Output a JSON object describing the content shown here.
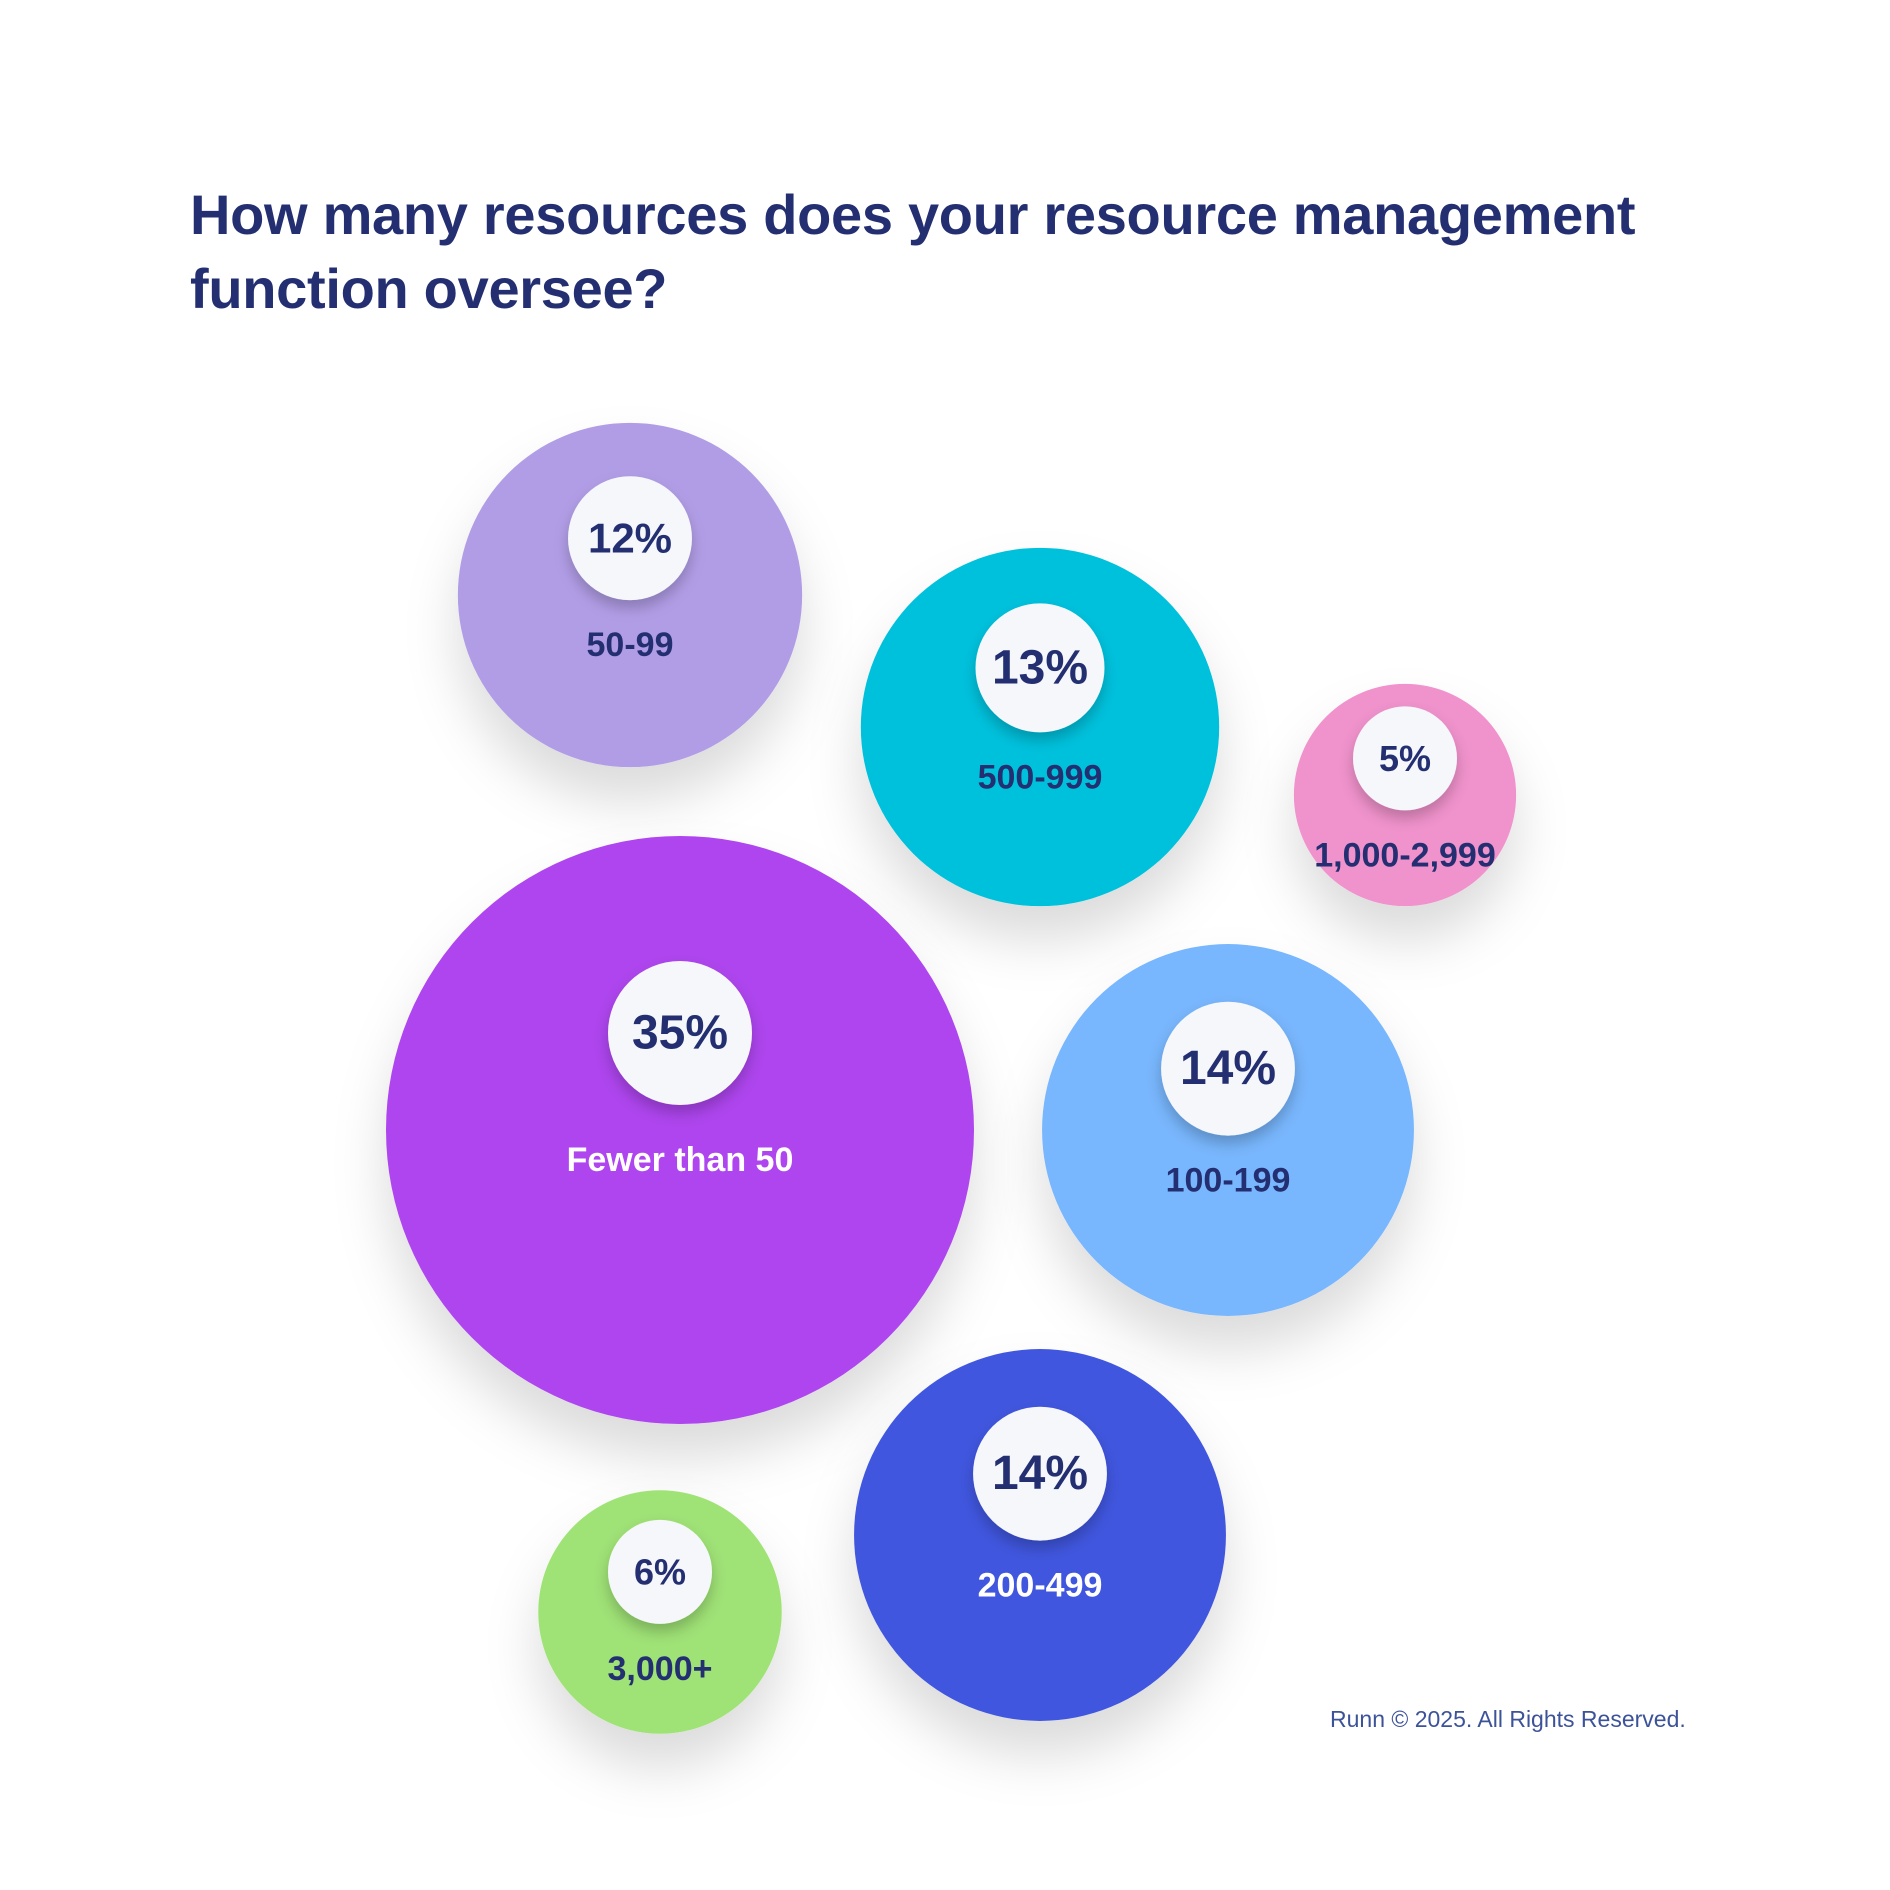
{
  "title": {
    "line1": "How many resources does your resource management",
    "line2": "function oversee?"
  },
  "footer": {
    "copyright": "Runn © 2025. All Rights Reserved."
  },
  "colors": {
    "title_text": "#242f72",
    "label_dark": "#242f72",
    "label_light": "#ffffff",
    "badge_fill": "#f5f7fa",
    "footer_text": "#3d5399"
  },
  "chart_data": {
    "type": "bubble",
    "unit": "%",
    "items": [
      {
        "category": "50-99",
        "value": 12,
        "value_label": "12%",
        "color": "#b19de6",
        "label_color": "#242f72"
      },
      {
        "category": "500-999",
        "value": 13,
        "value_label": "13%",
        "color": "#00c1dc",
        "label_color": "#242f72"
      },
      {
        "category": "1,000-2,999",
        "value": 5,
        "value_label": "5%",
        "color": "#f092cc",
        "label_color": "#242f72"
      },
      {
        "category": "Fewer than 50",
        "value": 35,
        "value_label": "35%",
        "color": "#ae45ee",
        "label_color": "#ffffff"
      },
      {
        "category": "100-199",
        "value": 14,
        "value_label": "14%",
        "color": "#78b6fd",
        "label_color": "#242f72"
      },
      {
        "category": "200-499",
        "value": 14,
        "value_label": "14%",
        "color": "#4157de",
        "label_color": "#ffffff"
      },
      {
        "category": "3,000+",
        "value": 6,
        "value_label": "6%",
        "color": "#9fe276",
        "label_color": "#242f72"
      }
    ]
  }
}
